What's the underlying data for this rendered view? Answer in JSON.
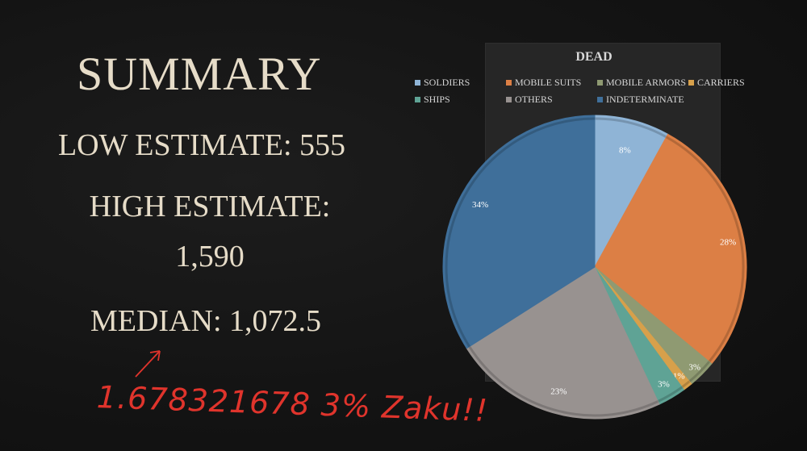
{
  "summary": {
    "title": "SUMMARY",
    "low": "LOW ESTIMATE: 555",
    "high_line1": "HIGH ESTIMATE:",
    "high_line2": "1,590",
    "median": "MEDIAN: 1,072.5",
    "handwritten_note": "1.678321678 3% Zaku!!"
  },
  "chart_data": {
    "type": "pie",
    "title": "DEAD",
    "legend_placement": "top",
    "categories": [
      "SOLDIERS",
      "MOBILE SUITS",
      "MOBILE ARMORS",
      "CARRIERS",
      "SHIPS",
      "OTHERS",
      "INDETERMINATE"
    ],
    "values": [
      8,
      28,
      3,
      1,
      3,
      23,
      34
    ],
    "labels": [
      "8%",
      "28%",
      "3%",
      "1%",
      "3%",
      "23%",
      "34%"
    ],
    "colors": [
      "#8fb4d6",
      "#dc7f45",
      "#8f9a72",
      "#d7a04b",
      "#5fa395",
      "#989290",
      "#3f6f9a"
    ]
  },
  "colors": {
    "text": "#e6dcc8",
    "note": "#e0342c",
    "background": "#131313"
  }
}
